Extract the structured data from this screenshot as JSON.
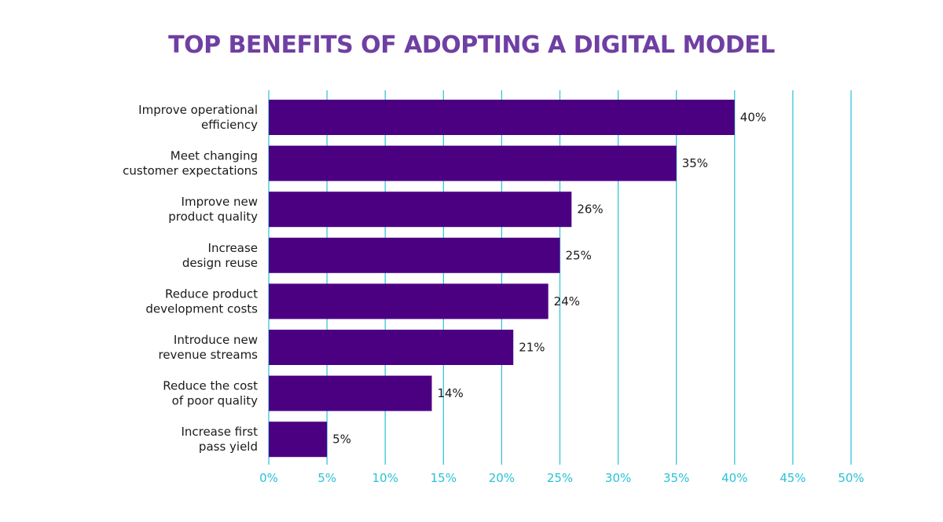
{
  "chart_data": {
    "type": "bar",
    "orientation": "horizontal",
    "title": "TOP BENEFITS OF ADOPTING A DIGITAL MODEL",
    "categories": [
      [
        "Improve operational",
        "efficiency"
      ],
      [
        "Meet changing",
        "customer expectations"
      ],
      [
        "Improve new",
        "product quality"
      ],
      [
        "Increase",
        "design reuse"
      ],
      [
        "Reduce product",
        "development costs"
      ],
      [
        "Introduce new",
        "revenue streams"
      ],
      [
        "Reduce the cost",
        "of poor quality"
      ],
      [
        "Increase first",
        "pass yield"
      ]
    ],
    "values": [
      40,
      35,
      26,
      25,
      24,
      21,
      14,
      5
    ],
    "value_labels": [
      "40%",
      "35%",
      "26%",
      "25%",
      "24%",
      "21%",
      "14%",
      "5%"
    ],
    "xlim": [
      0,
      50
    ],
    "x_ticks": [
      0,
      5,
      10,
      15,
      20,
      25,
      30,
      35,
      40,
      45,
      50
    ],
    "x_tick_labels": [
      "0%",
      "5%",
      "10%",
      "15%",
      "20%",
      "25%",
      "30%",
      "35%",
      "40%",
      "45%",
      "50%"
    ],
    "xlabel": "",
    "ylabel": "",
    "grid": "vertical",
    "legend": "none",
    "colors": {
      "bar": "#4b0082",
      "grid": "#29c2d6",
      "tick_label": "#29c2d6",
      "title": "#6f3fa3"
    }
  }
}
